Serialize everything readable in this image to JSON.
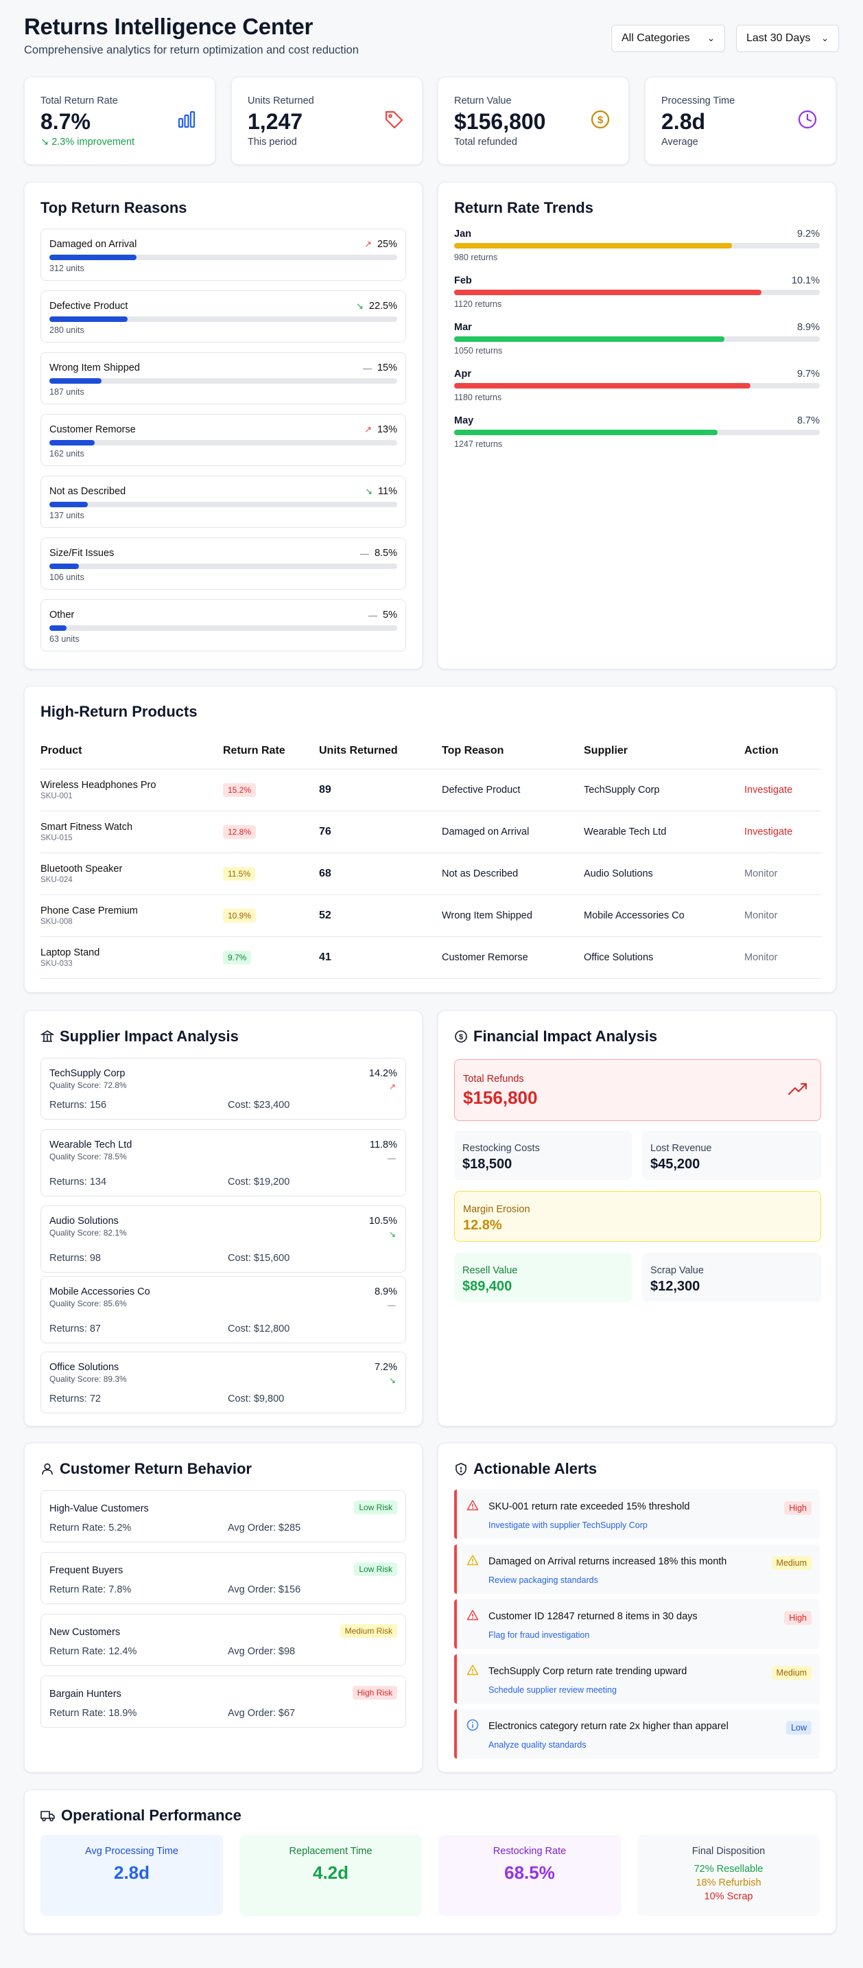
{
  "header": {
    "title": "Returns Intelligence Center",
    "subtitle": "Comprehensive analytics for return optimization and cost reduction",
    "category_select": "All Categories",
    "period_select": "Last 30 Days"
  },
  "stats": [
    {
      "label": "Total Return Rate",
      "value": "8.7%",
      "sub": "2.3% improvement",
      "icon": "bar-chart-icon",
      "color": "#2563eb"
    },
    {
      "label": "Units Returned",
      "value": "1,247",
      "sub": "This period",
      "icon": "tag-icon",
      "color": "#ef4444"
    },
    {
      "label": "Return Value",
      "value": "$156,800",
      "sub": "Total refunded",
      "icon": "dollar-icon",
      "color": "#ca8a04"
    },
    {
      "label": "Processing Time",
      "value": "2.8d",
      "sub": "Average",
      "icon": "clock-icon",
      "color": "#9333ea"
    }
  ],
  "reasons": {
    "title": "Top Return Reasons",
    "items": [
      {
        "name": "Damaged on Arrival",
        "pct": "25%",
        "units": "312 units",
        "trend": "up",
        "fill": 25
      },
      {
        "name": "Defective Product",
        "pct": "22.5%",
        "units": "280 units",
        "trend": "down",
        "fill": 22.5
      },
      {
        "name": "Wrong Item Shipped",
        "pct": "15%",
        "units": "187 units",
        "trend": "flat",
        "fill": 15
      },
      {
        "name": "Customer Remorse",
        "pct": "13%",
        "units": "162 units",
        "trend": "up",
        "fill": 13
      },
      {
        "name": "Not as Described",
        "pct": "11%",
        "units": "137 units",
        "trend": "down",
        "fill": 11
      },
      {
        "name": "Size/Fit Issues",
        "pct": "8.5%",
        "units": "106 units",
        "trend": "flat",
        "fill": 8.5
      },
      {
        "name": "Other",
        "pct": "5%",
        "units": "63 units",
        "trend": "flat",
        "fill": 5
      }
    ]
  },
  "trends": {
    "title": "Return Rate Trends",
    "items": [
      {
        "month": "Jan",
        "rate": "9.2%",
        "returns": "980 returns",
        "fill": 76,
        "color": "#eab308"
      },
      {
        "month": "Feb",
        "rate": "10.1%",
        "returns": "1120 returns",
        "fill": 84,
        "color": "#ef4444"
      },
      {
        "month": "Mar",
        "rate": "8.9%",
        "returns": "1050 returns",
        "fill": 74,
        "color": "#22c55e"
      },
      {
        "month": "Apr",
        "rate": "9.7%",
        "returns": "1180 returns",
        "fill": 81,
        "color": "#ef4444"
      },
      {
        "month": "May",
        "rate": "8.7%",
        "returns": "1247 returns",
        "fill": 72,
        "color": "#22c55e"
      }
    ]
  },
  "products": {
    "title": "High-Return Products",
    "columns": [
      "Product",
      "Return Rate",
      "Units Returned",
      "Top Reason",
      "Supplier",
      "Action"
    ],
    "rows": [
      {
        "name": "Wireless Headphones Pro",
        "sku": "SKU-001",
        "rate": "15.2%",
        "units": "89",
        "reason": "Defective Product",
        "supplier": "TechSupply Corp",
        "action": "Investigate",
        "level": "high"
      },
      {
        "name": "Smart Fitness Watch",
        "sku": "SKU-015",
        "rate": "12.8%",
        "units": "76",
        "reason": "Damaged on Arrival",
        "supplier": "Wearable Tech Ltd",
        "action": "Investigate",
        "level": "high"
      },
      {
        "name": "Bluetooth Speaker",
        "sku": "SKU-024",
        "rate": "11.5%",
        "units": "68",
        "reason": "Not as Described",
        "supplier": "Audio Solutions",
        "action": "Monitor",
        "level": "medium"
      },
      {
        "name": "Phone Case Premium",
        "sku": "SKU-008",
        "rate": "10.9%",
        "units": "52",
        "reason": "Wrong Item Shipped",
        "supplier": "Mobile Accessories Co",
        "action": "Monitor",
        "level": "medium"
      },
      {
        "name": "Laptop Stand",
        "sku": "SKU-033",
        "rate": "9.7%",
        "units": "41",
        "reason": "Customer Remorse",
        "supplier": "Office Solutions",
        "action": "Monitor",
        "level": "low"
      }
    ]
  },
  "suppliers": {
    "title": "Supplier Impact Analysis",
    "items": [
      {
        "name": "TechSupply Corp",
        "quality": "Quality Score: 72.8%",
        "rate": "14.2%",
        "returns": "Returns: 156",
        "cost": "Cost: $23,400",
        "trend": "up"
      },
      {
        "name": "Wearable Tech Ltd",
        "quality": "Quality Score: 78.5%",
        "rate": "11.8%",
        "returns": "Returns: 134",
        "cost": "Cost: $19,200",
        "trend": "flat"
      },
      {
        "name": "Audio Solutions",
        "quality": "Quality Score: 82.1%",
        "rate": "10.5%",
        "returns": "Returns: 98",
        "cost": "Cost: $15,600",
        "trend": "down"
      },
      {
        "name": "Mobile Accessories Co",
        "quality": "Quality Score: 85.6%",
        "rate": "8.9%",
        "returns": "Returns: 87",
        "cost": "Cost: $12,800",
        "trend": "flat"
      },
      {
        "name": "Office Solutions",
        "quality": "Quality Score: 89.3%",
        "rate": "7.2%",
        "returns": "Returns: 72",
        "cost": "Cost: $9,800",
        "trend": "down"
      }
    ]
  },
  "financial": {
    "title": "Financial Impact Analysis",
    "total_refunds_label": "Total Refunds",
    "total_refunds": "$156,800",
    "restocking_label": "Restocking Costs",
    "restocking": "$18,500",
    "lost_revenue_label": "Lost Revenue",
    "lost_revenue": "$45,200",
    "margin_label": "Margin Erosion",
    "margin": "12.8%",
    "resell_label": "Resell Value",
    "resell": "$89,400",
    "scrap_label": "Scrap Value",
    "scrap": "$12,300"
  },
  "behavior": {
    "title": "Customer Return Behavior",
    "items": [
      {
        "name": "High-Value Customers",
        "risk": "Low Risk",
        "rate": "Return Rate: 5.2%",
        "order": "Avg Order: $285",
        "level": "low"
      },
      {
        "name": "Frequent Buyers",
        "risk": "Low Risk",
        "rate": "Return Rate: 7.8%",
        "order": "Avg Order: $156",
        "level": "low"
      },
      {
        "name": "New Customers",
        "risk": "Medium Risk",
        "rate": "Return Rate: 12.4%",
        "order": "Avg Order: $98",
        "level": "medium"
      },
      {
        "name": "Bargain Hunters",
        "risk": "High Risk",
        "rate": "Return Rate: 18.9%",
        "order": "Avg Order: $67",
        "level": "high"
      }
    ]
  },
  "alerts": {
    "title": "Actionable Alerts",
    "items": [
      {
        "text": "SKU-001 return rate exceeded 15% threshold",
        "action": "Investigate with supplier TechSupply Corp",
        "severity": "High",
        "icon": "alert-triangle-icon",
        "level": "high"
      },
      {
        "text": "Damaged on Arrival returns increased 18% this month",
        "action": "Review packaging standards",
        "severity": "Medium",
        "icon": "warning-triangle-icon",
        "level": "medium"
      },
      {
        "text": "Customer ID 12847 returned 8 items in 30 days",
        "action": "Flag for fraud investigation",
        "severity": "High",
        "icon": "alert-triangle-icon",
        "level": "high"
      },
      {
        "text": "TechSupply Corp return rate trending upward",
        "action": "Schedule supplier review meeting",
        "severity": "Medium",
        "icon": "warning-triangle-icon",
        "level": "medium"
      },
      {
        "text": "Electronics category return rate 2x higher than apparel",
        "action": "Analyze quality standards",
        "severity": "Low",
        "icon": "info-icon",
        "level": "low"
      }
    ]
  },
  "operational": {
    "title": "Operational Performance",
    "avg_processing_label": "Avg Processing Time",
    "avg_processing": "2.8d",
    "replacement_label": "Replacement Time",
    "replacement": "4.2d",
    "restocking_label": "Restocking Rate",
    "restocking": "68.5%",
    "disposition_label": "Final Disposition",
    "resellable": "72% Resellable",
    "refurbish": "18% Refurbish",
    "scrap": "10% Scrap"
  }
}
